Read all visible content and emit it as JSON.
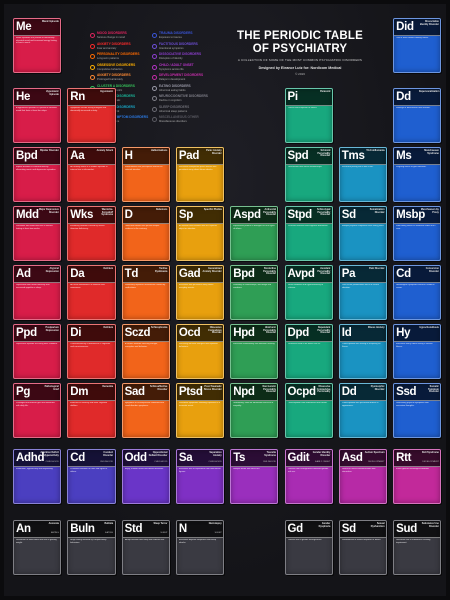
{
  "title": "THE PERIODIC TABLE OF PSYCHIATRY",
  "subtitle": "A COLLECTION OF SOME OF THE MOST COMMON PSYCHIATRIC DISORDERS",
  "credit": "Designed by Eleanor Lutz for: Nordicom Medical",
  "year": "© 2016",
  "legend": [
    {
      "title": "MOOD DISORDERS",
      "sub": "Serious change in mood",
      "color": "#e0245e"
    },
    {
      "title": "ANXIETY DISORDERS",
      "sub": "Fear and anxiety",
      "color": "#ff2a2a"
    },
    {
      "title": "PERSONALITY DISORDERS",
      "sub": "Long-term patterns",
      "color": "#ff6a00"
    },
    {
      "title": "OBSESSIVE DISORDERS",
      "sub": "Compulsive behaviors",
      "color": "#ffb000"
    },
    {
      "title": "ANXIETY DISORDERS",
      "sub": "Prolonged fear/anxiety",
      "color": "#ff8a33"
    },
    {
      "title": "CLUSTER A DISORDERS",
      "sub": "Strange and eccentric",
      "color": "#36c25b"
    },
    {
      "title": "CLUSTER B DISORDERS",
      "sub": "Dramatic and erratic",
      "color": "#1ab79a"
    },
    {
      "title": "CLUSTER C DISORDERS",
      "sub": "Anxious and fearful",
      "color": "#19a9c9"
    },
    {
      "title": "SOMATIC SYMPTOM DISORDERS",
      "sub": "Physical symptoms",
      "color": "#2c7be5"
    },
    {
      "title": "TRAUMA DISORDERS",
      "sub": "Exposure to trauma",
      "color": "#3a55d9"
    },
    {
      "title": "FACTITIOUS DISORDERS",
      "sub": "Intentional symptoms",
      "color": "#6f4fd9"
    },
    {
      "title": "DISSOCIATIVE DISORDERS",
      "sub": "Disruption of identity",
      "color": "#8e3fd0"
    },
    {
      "title": "CHILD / ADULT ONSET",
      "sub": "Symptoms across life",
      "color": "#b535c6"
    },
    {
      "title": "DEVELOPMENT DISORDERS",
      "sub": "Delays in development",
      "color": "#c52da9"
    },
    {
      "title": "EATING DISORDERS",
      "sub": "Abnormal eating habits",
      "color": "#9a9aa8"
    },
    {
      "title": "NEUROCOGNITIVE DISORDERS",
      "sub": "Decline in cognition",
      "color": "#80808a"
    },
    {
      "title": "SLEEP DISORDERS",
      "sub": "Abnormal sleep patterns",
      "color": "#6d6d76"
    },
    {
      "title": "MISCELLANEOUS OTHER",
      "sub": "Miscellaneous disorders",
      "color": "#5b5b63"
    }
  ],
  "cells": [
    {
      "sym": "Me",
      "name": "Manic Episode",
      "cls": "",
      "desc": "Manic episodes are periods of abnormally elevated mood and increased energy lasting at least a week.",
      "col": 0,
      "row": 0,
      "color": "#d81d49"
    },
    {
      "sym": "He",
      "name": "Hypomanic Episode",
      "cls": "",
      "desc": "A hypomanic episode is a period of elevated mood that lasts at least four days.",
      "col": 0,
      "row": 1,
      "color": "#d81d49"
    },
    {
      "sym": "Rn",
      "name": "Hypomanic",
      "cls": "",
      "desc": "Symptoms include racing thoughts and abnormally increased activity.",
      "col": 1,
      "row": 1,
      "color": "#e02a2a"
    },
    {
      "sym": "Bpd",
      "name": "Bipolar Disorder",
      "cls": "",
      "desc": "Bipolar disorder is characterized by alternating manic and depressive episodes.",
      "col": 0,
      "row": 2,
      "color": "#d81d49"
    },
    {
      "sym": "Aa",
      "name": "Anxiety Attack",
      "cls": "",
      "desc": "An anxiety attack is a sudden episode of intense fear or discomfort.",
      "col": 1,
      "row": 2,
      "color": "#e02a2a"
    },
    {
      "sym": "H",
      "name": "Hallucinations",
      "cls": "",
      "desc": "Hallucinations are perceptions without an external stimulus.",
      "col": 2,
      "row": 2,
      "color": "#f2641a"
    },
    {
      "sym": "Pad",
      "name": "Panic Anxiety Disorder",
      "cls": "",
      "desc": "Recurrent unexpected panic attacks with persistent worry about future attacks.",
      "col": 3,
      "row": 2,
      "color": "#e8a00e"
    },
    {
      "sym": "Mdd",
      "name": "Major Depressive Disorder",
      "cls": "",
      "desc": "Persistent low mood and loss of interest lasting at least two weeks.",
      "col": 0,
      "row": 3,
      "color": "#d81d49"
    },
    {
      "sym": "Wks",
      "name": "Wernicke-Korsakoff Syndrome",
      "cls": "",
      "desc": "A memory disorder caused by severe thiamine deficiency.",
      "col": 1,
      "row": 3,
      "color": "#e02a2a"
    },
    {
      "sym": "D",
      "name": "Delusions",
      "cls": "",
      "desc": "Fixed false beliefs that persist despite evidence to the contrary.",
      "col": 2,
      "row": 3,
      "color": "#f2641a"
    },
    {
      "sym": "Sp",
      "name": "Specific Phobia",
      "cls": "",
      "desc": "An intense and irrational fear of a specific object or situation.",
      "col": 3,
      "row": 3,
      "color": "#e8a00e"
    },
    {
      "sym": "Ad",
      "name": "Atypical Depression",
      "cls": "",
      "desc": "Depression with mood reactivity and increased appetite or sleep.",
      "col": 0,
      "row": 4,
      "color": "#d81d49"
    },
    {
      "sym": "Da",
      "name": "Delirium",
      "cls": "",
      "desc": "An acute disturbance in attention and awareness.",
      "col": 1,
      "row": 4,
      "color": "#e02a2a"
    },
    {
      "sym": "Td",
      "name": "Tardive Dyskinesia",
      "cls": "",
      "desc": "Involuntary repetitive movements caused by medications.",
      "col": 2,
      "row": 4,
      "color": "#f2641a"
    },
    {
      "sym": "Gad",
      "name": "Generalized Anxiety Disorder",
      "cls": "",
      "desc": "Excessive and persistent worry about everyday events.",
      "col": 3,
      "row": 4,
      "color": "#e8a00e"
    },
    {
      "sym": "Ppd",
      "name": "Postpartum Depression",
      "cls": "",
      "desc": "Depressive episode occurring after childbirth.",
      "col": 0,
      "row": 5,
      "color": "#d81d49"
    },
    {
      "sym": "Di",
      "name": "Delirium",
      "cls": "",
      "desc": "Characterized by a disturbance in cognition and consciousness.",
      "col": 1,
      "row": 5,
      "color": "#e02a2a"
    },
    {
      "sym": "Sczd",
      "name": "Schizophrenia",
      "cls": "",
      "desc": "A chronic disorder affecting thought, perception and behavior.",
      "col": 2,
      "row": 5,
      "color": "#f2641a"
    },
    {
      "sym": "Ocd",
      "name": "Obsessive Compulsive Disorder",
      "cls": "",
      "desc": "Recurring intrusive thoughts and repetitive behaviors.",
      "col": 3,
      "row": 5,
      "color": "#e8a00e"
    },
    {
      "sym": "Pg",
      "name": "Pathological Grief",
      "cls": "",
      "desc": "Prolonged and intense grief that interferes with daily life.",
      "col": 0,
      "row": 6,
      "color": "#d81d49"
    },
    {
      "sym": "Dm",
      "name": "Dementia",
      "cls": "",
      "desc": "A decline in memory and other cognitive abilities.",
      "col": 1,
      "row": 6,
      "color": "#e02a2a"
    },
    {
      "sym": "Sad",
      "name": "Schizoaffective Disorder",
      "cls": "",
      "desc": "Symptoms of schizophrenia combined with mood disorder symptoms.",
      "col": 2,
      "row": 6,
      "color": "#f2641a"
    },
    {
      "sym": "Ptsd",
      "name": "Post-Traumatic Stress Disorder",
      "cls": "",
      "desc": "Persistent symptoms following exposure to a traumatic event.",
      "col": 3,
      "row": 6,
      "color": "#e8a00e"
    },
    {
      "sym": "Aspd",
      "name": "Antisocial Personality Disorder",
      "cls": "",
      "desc": "A pervasive pattern of disregard for the rights of others.",
      "col": 4,
      "row": 3,
      "color": "#2f9e55"
    },
    {
      "sym": "Bpd",
      "name": "Borderline Personality Disorder",
      "cls": "",
      "desc": "Instability in relationships, self-image and emotions.",
      "col": 4,
      "row": 4,
      "color": "#2f9e55"
    },
    {
      "sym": "Hpd",
      "name": "Histrionic Personality Disorder",
      "cls": "",
      "desc": "Excessive emotionality and attention seeking.",
      "col": 4,
      "row": 5,
      "color": "#2f9e55"
    },
    {
      "sym": "Npd",
      "name": "Narcissistic Personality Disorder",
      "cls": "",
      "desc": "Grandiosity, need for admiration and lack of empathy.",
      "col": 4,
      "row": 6,
      "color": "#2f9e55"
    },
    {
      "sym": "Pi",
      "name": "Paranoid",
      "cls": "",
      "desc": "Distrust and suspicion of others.",
      "col": 5,
      "row": 1,
      "color": "#18a87e"
    },
    {
      "sym": "Spd",
      "name": "Schizoid Personality Disorder",
      "cls": "",
      "desc": "Detachment from social relationships.",
      "col": 5,
      "row": 2,
      "color": "#18a87e"
    },
    {
      "sym": "Stpd",
      "name": "Schizotypal Personality Disorder",
      "cls": "",
      "desc": "Eccentric behavior and cognitive distortions.",
      "col": 5,
      "row": 3,
      "color": "#18a87e"
    },
    {
      "sym": "Avpd",
      "name": "Avoidant Personality Disorder",
      "cls": "",
      "desc": "Social inhibition and hypersensitivity to criticism.",
      "col": 5,
      "row": 4,
      "color": "#18a87e"
    },
    {
      "sym": "Dpd",
      "name": "Dependent Personality Disorder",
      "cls": "",
      "desc": "Excessive need to be taken care of.",
      "col": 5,
      "row": 5,
      "color": "#18a87e"
    },
    {
      "sym": "Ocpd",
      "name": "Obsessive Compulsive Personality",
      "cls": "",
      "desc": "Preoccupation with orderliness and control.",
      "col": 5,
      "row": 6,
      "color": "#18a87e"
    },
    {
      "sym": "Did",
      "name": "Dissociative Identity Disorder",
      "cls": "",
      "desc": "Two or more distinct identity states.",
      "col": 7,
      "row": 0,
      "color": "#1f5fd0"
    },
    {
      "sym": "Dd",
      "name": "Depersonalization",
      "cls": "",
      "desc": "Feelings of detachment from oneself.",
      "col": 7,
      "row": 1,
      "color": "#1f5fd0"
    },
    {
      "sym": "Ms",
      "name": "Munchausen Syndrome",
      "cls": "",
      "desc": "Feigning illness to gain attention.",
      "col": 7,
      "row": 2,
      "color": "#1f5fd0"
    },
    {
      "sym": "Msbp",
      "name": "Munchausen by Proxy",
      "cls": "",
      "desc": "Fabricating illness in someone under one's care.",
      "col": 7,
      "row": 3,
      "color": "#1f5fd0"
    },
    {
      "sym": "Cd",
      "name": "Conversion Disorder",
      "cls": "",
      "desc": "Neurological symptoms without a medical cause.",
      "col": 7,
      "row": 4,
      "color": "#1f5fd0"
    },
    {
      "sym": "Hy",
      "name": "Hypochondriasis",
      "cls": "",
      "desc": "Excessive worry about having a serious illness.",
      "col": 7,
      "row": 5,
      "color": "#1f5fd0"
    },
    {
      "sym": "Ssd",
      "name": "Somatic Symptom Disorder",
      "cls": "",
      "desc": "Distressing physical symptoms with excessive thoughts.",
      "col": 7,
      "row": 6,
      "color": "#1f5fd0"
    },
    {
      "sym": "Tms",
      "name": "Trichotillomania",
      "cls": "",
      "desc": "Recurrent pulling out of one's hair.",
      "col": 6,
      "row": 2,
      "color": "#1a93c2"
    },
    {
      "sym": "Sd",
      "name": "Somatization Disorder",
      "cls": "",
      "desc": "Multiple physical complaints over many years.",
      "col": 6,
      "row": 3,
      "color": "#1a93c2"
    },
    {
      "sym": "Pa",
      "name": "Pain Disorder",
      "cls": "",
      "desc": "Pain as the predominant focus of clinical attention.",
      "col": 6,
      "row": 4,
      "color": "#1a93c2"
    },
    {
      "sym": "Id",
      "name": "Illness Anxiety",
      "cls": "",
      "desc": "Preoccupation with having or acquiring an illness.",
      "col": 6,
      "row": 5,
      "color": "#1a93c2"
    },
    {
      "sym": "Dd",
      "name": "Dysmorphic Disorder",
      "cls": "",
      "desc": "Preoccupation with perceived defects in appearance.",
      "col": 6,
      "row": 6,
      "color": "#1a93c2"
    },
    {
      "sym": "Adhd",
      "name": "Attention Deficit Hyperactivity",
      "cls": "CHILDHOOD",
      "desc": "Inattention, hyperactivity and impulsivity.",
      "col": 0,
      "row": 7,
      "color": "#4b3fc0"
    },
    {
      "sym": "Cd",
      "name": "Conduct Disorder",
      "cls": "CHILDHOOD",
      "desc": "Persistent violation of rules and rights of others.",
      "col": 1,
      "row": 7,
      "color": "#4b3fc0"
    },
    {
      "sym": "Odd",
      "name": "Oppositional Defiant Disorder",
      "cls": "CHILDHOOD",
      "desc": "Angry, irritable mood and defiant behavior.",
      "col": 2,
      "row": 7,
      "color": "#6a35c8"
    },
    {
      "sym": "Sa",
      "name": "Separation Anxiety",
      "cls": "CHILDHOOD",
      "desc": "Excessive fear of separation from attachment figures.",
      "col": 3,
      "row": 7,
      "color": "#7f30c4"
    },
    {
      "sym": "Ts",
      "name": "Tourette Syndrome",
      "cls": "CHILDHOOD",
      "desc": "Multiple motor and vocal tics.",
      "col": 4,
      "row": 7,
      "color": "#9a2fbd"
    },
    {
      "sym": "Gdit",
      "name": "Gender Identity Disorder",
      "cls": "EARLY ONSET",
      "desc": "Distress from incongruence between gender and sex.",
      "col": 5,
      "row": 7,
      "color": "#a92cb3"
    },
    {
      "sym": "Asd",
      "name": "Autism Spectrum",
      "cls": "DEVELOPMENT",
      "desc": "Deficits in social communication and interaction.",
      "col": 6,
      "row": 7,
      "color": "#b72aa6"
    },
    {
      "sym": "Rtt",
      "name": "Rett Syndrome",
      "cls": "DEVELOPMENT",
      "desc": "A rare genetic neurological disorder.",
      "col": 7,
      "row": 7,
      "color": "#c2299a"
    },
    {
      "sym": "An",
      "name": "Anorexia",
      "cls": "EATING",
      "desc": "Restriction of food intake and fear of gaining weight.",
      "col": 0,
      "row": 8,
      "color": "#3a3a42"
    },
    {
      "sym": "Buln",
      "name": "Bulimia",
      "cls": "EATING",
      "desc": "Binge eating followed by compensatory behaviors.",
      "col": 1,
      "row": 8,
      "color": "#3a3a42"
    },
    {
      "sym": "Std",
      "name": "Sleep Terror",
      "cls": "SLEEP",
      "desc": "Abrupt arousal from sleep with intense fear.",
      "col": 2,
      "row": 8,
      "color": "#3a3a42"
    },
    {
      "sym": "N",
      "name": "Narcolepsy",
      "cls": "SLEEP",
      "desc": "Excessive daytime sleepiness and sleep attacks.",
      "col": 3,
      "row": 8,
      "color": "#3a3a42"
    },
    {
      "sym": "Gd",
      "name": "Gender Dysphoria",
      "cls": "",
      "desc": "Distress due to gender incongruence.",
      "col": 5,
      "row": 8,
      "color": "#3a3a42"
    },
    {
      "sym": "Sd",
      "name": "Sexual Dysfunction",
      "cls": "",
      "desc": "Disturbances in sexual response or desire.",
      "col": 6,
      "row": 8,
      "color": "#3a3a42"
    },
    {
      "sym": "Sud",
      "name": "Substance Use Disorder",
      "cls": "",
      "desc": "Recurrent use of substances causing impairment.",
      "col": 7,
      "row": 8,
      "color": "#3a3a42"
    }
  ]
}
